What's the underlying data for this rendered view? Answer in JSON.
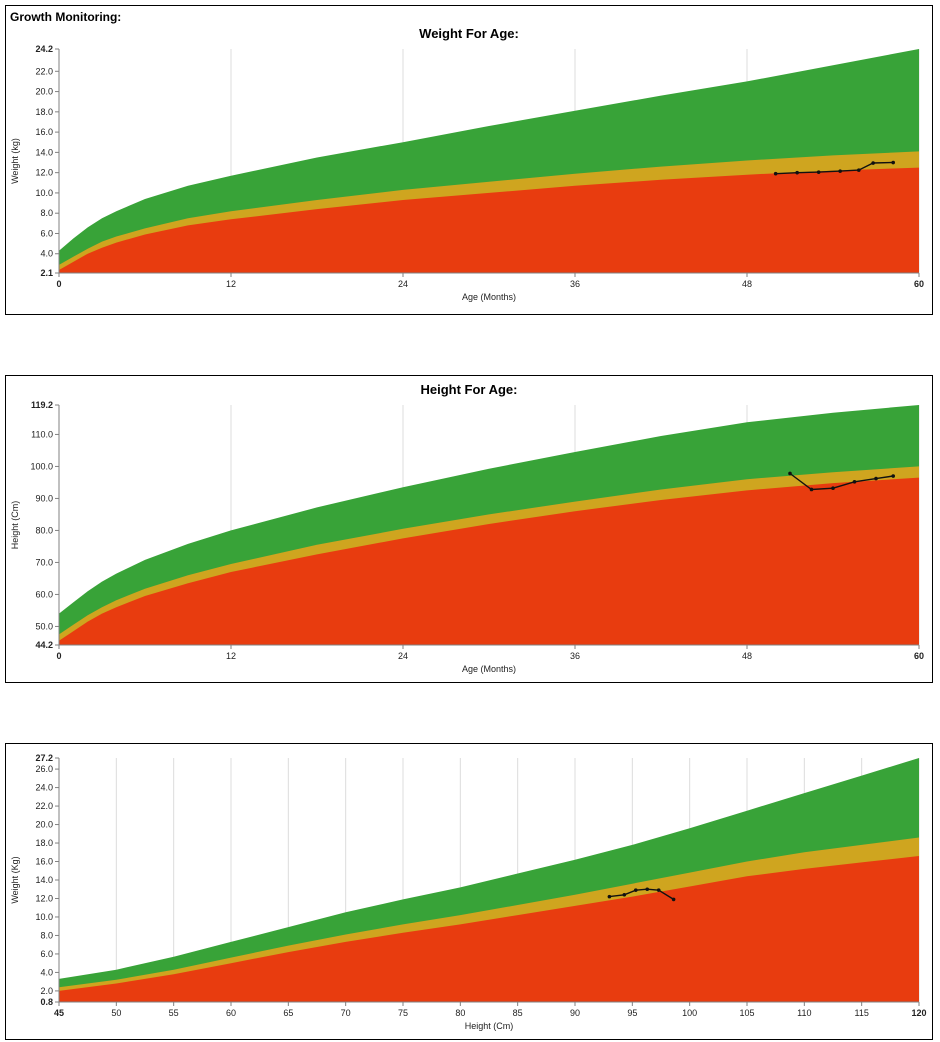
{
  "page": {
    "heading": "Growth Monitoring:"
  },
  "chart_data": [
    {
      "type": "area",
      "title": "Weight For Age:",
      "xlabel": "Age (Months)",
      "ylabel": "Weight (kg)",
      "xlim": [
        0,
        60
      ],
      "ylim": [
        2.1,
        24.2
      ],
      "x_ticks": [
        0,
        12,
        24,
        36,
        48,
        60
      ],
      "y_ticks": [
        2.1,
        4,
        6,
        8,
        10,
        12,
        14,
        16,
        18,
        20,
        22,
        24.2
      ],
      "grid": "vertical-only",
      "legend": "none",
      "colors": {
        "green": "#38a338",
        "yellow": "#cfa51f",
        "red": "#e83c0f",
        "patient": "#111111"
      },
      "zones": {
        "x": [
          0,
          1,
          2,
          3,
          4,
          6,
          9,
          12,
          18,
          24,
          30,
          36,
          42,
          48,
          54,
          60
        ],
        "red_top": [
          2.4,
          3.2,
          4.0,
          4.6,
          5.1,
          5.9,
          6.8,
          7.4,
          8.4,
          9.3,
          10.0,
          10.7,
          11.3,
          11.8,
          12.2,
          12.5
        ],
        "yellow_top": [
          2.9,
          3.7,
          4.5,
          5.2,
          5.7,
          6.5,
          7.5,
          8.2,
          9.3,
          10.3,
          11.1,
          11.9,
          12.6,
          13.2,
          13.7,
          14.1
        ],
        "green_top": [
          4.3,
          5.5,
          6.6,
          7.5,
          8.2,
          9.4,
          10.7,
          11.7,
          13.5,
          15.0,
          16.6,
          18.1,
          19.6,
          21.0,
          22.6,
          24.2
        ]
      },
      "patient": {
        "x": [
          50.0,
          51.5,
          53.0,
          54.5,
          55.8,
          56.8,
          58.2
        ],
        "y": [
          11.9,
          12.0,
          12.05,
          12.15,
          12.25,
          12.95,
          13.0
        ]
      }
    },
    {
      "type": "area",
      "title": "Height For Age:",
      "xlabel": "Age (Months)",
      "ylabel": "Height (Cm)",
      "xlim": [
        0,
        60
      ],
      "ylim": [
        44.2,
        119.2
      ],
      "x_ticks": [
        0,
        12,
        24,
        36,
        48,
        60
      ],
      "y_ticks": [
        44.2,
        50,
        60,
        70,
        80,
        90,
        100,
        110,
        119.2
      ],
      "grid": "vertical-only",
      "legend": "none",
      "colors": {
        "green": "#38a338",
        "yellow": "#cfa51f",
        "red": "#e83c0f",
        "patient": "#111111"
      },
      "zones": {
        "x": [
          0,
          1,
          2,
          3,
          4,
          6,
          9,
          12,
          18,
          24,
          30,
          36,
          42,
          48,
          54,
          60
        ],
        "red_top": [
          45.5,
          48.5,
          51.5,
          54.0,
          56.0,
          59.5,
          63.5,
          67.0,
          72.5,
          77.5,
          82.0,
          86.0,
          89.5,
          92.5,
          94.8,
          96.5
        ],
        "yellow_top": [
          47.5,
          50.5,
          53.5,
          56.0,
          58.2,
          61.8,
          66.0,
          69.5,
          75.5,
          80.5,
          85.0,
          89.0,
          92.8,
          96.0,
          98.2,
          100.0
        ],
        "green_top": [
          54.0,
          57.5,
          61.0,
          64.0,
          66.5,
          70.8,
          75.8,
          80.0,
          87.2,
          93.5,
          99.3,
          104.5,
          109.5,
          113.8,
          116.8,
          119.2
        ]
      },
      "patient": {
        "x": [
          51.0,
          52.5,
          54.0,
          55.5,
          57.0,
          58.2
        ],
        "y": [
          97.8,
          92.8,
          93.2,
          95.2,
          96.2,
          97.0
        ]
      }
    },
    {
      "type": "area",
      "title": "",
      "xlabel": "Height (Cm)",
      "ylabel": "Weight (Kg)",
      "xlim": [
        45,
        120
      ],
      "ylim": [
        0.8,
        27.2
      ],
      "x_ticks": [
        45,
        50,
        55,
        60,
        65,
        70,
        75,
        80,
        85,
        90,
        95,
        100,
        105,
        110,
        115,
        120
      ],
      "y_ticks": [
        0.8,
        2,
        4,
        6,
        8,
        10,
        12,
        14,
        16,
        18,
        20,
        22,
        24,
        26,
        27.2
      ],
      "grid": "vertical-only",
      "legend": "none",
      "colors": {
        "green": "#38a338",
        "yellow": "#cfa51f",
        "red": "#e83c0f",
        "patient": "#111111"
      },
      "zones": {
        "x": [
          45,
          50,
          55,
          60,
          65,
          70,
          75,
          80,
          85,
          90,
          95,
          100,
          105,
          110,
          115,
          120
        ],
        "red_top": [
          2.0,
          2.8,
          3.8,
          5.0,
          6.2,
          7.3,
          8.3,
          9.2,
          10.2,
          11.2,
          12.2,
          13.3,
          14.4,
          15.2,
          15.9,
          16.6
        ],
        "yellow_top": [
          2.4,
          3.2,
          4.3,
          5.6,
          6.9,
          8.1,
          9.2,
          10.2,
          11.3,
          12.4,
          13.6,
          14.8,
          16.0,
          17.0,
          17.8,
          18.6
        ],
        "green_top": [
          3.3,
          4.3,
          5.7,
          7.3,
          8.9,
          10.5,
          11.9,
          13.2,
          14.7,
          16.2,
          17.8,
          19.6,
          21.5,
          23.4,
          25.3,
          27.2
        ]
      },
      "patient": {
        "x": [
          93.0,
          94.3,
          95.3,
          96.3,
          97.3,
          98.6
        ],
        "y": [
          12.2,
          12.4,
          12.9,
          13.0,
          12.9,
          11.9
        ]
      }
    }
  ]
}
